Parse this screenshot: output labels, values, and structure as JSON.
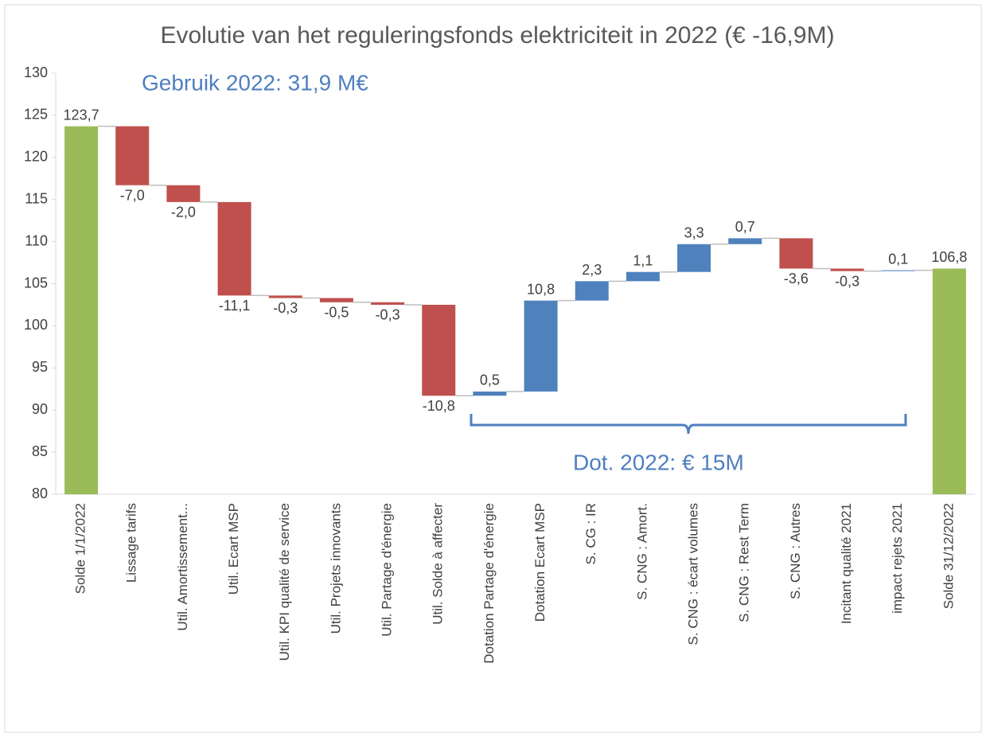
{
  "chart_data": {
    "type": "waterfall",
    "title": "Evolutie van het reguleringsfonds elektriciteit in 2022 (€ -16,9M)",
    "annotations": [
      "Gebruik 2022: 31,9 M€",
      "Dot. 2022: € 15M"
    ],
    "categories": [
      "Solde 1/1/2022",
      "Lissage tarifs",
      "Util. Amortissement...",
      "Util. Ecart MSP",
      "Util. KPI qualité de service",
      "Util. Projets innovants",
      "Util. Partage d'énergie",
      "Util. Solde à affecter",
      "Dotation Partage d'énergie",
      "Dotation Ecart MSP",
      "S. CG : IR",
      "S. CNG : Amort.",
      "S. CNG : écart volumes",
      "S. CNG : Rest Term",
      "S. CNG : Autres",
      "Incitant qualité 2021",
      "impact rejets 2021",
      "Solde 31/12/2022"
    ],
    "values": [
      123.7,
      -7.0,
      -2.0,
      -11.1,
      -0.3,
      -0.5,
      -0.3,
      -10.8,
      0.5,
      10.8,
      2.3,
      1.1,
      3.3,
      0.7,
      -3.6,
      -0.3,
      0.1,
      106.8
    ],
    "value_labels": [
      "123,7",
      "-7,0",
      "-2,0",
      "-11,1",
      "-0,3",
      "-0,5",
      "-0,3",
      "-10,8",
      "0,5",
      "10,8",
      "2,3",
      "1,1",
      "3,3",
      "0,7",
      "-3,6",
      "-0,3",
      "0,1",
      "106,8"
    ],
    "measure": [
      "total",
      "relative",
      "relative",
      "relative",
      "relative",
      "relative",
      "relative",
      "relative",
      "relative",
      "relative",
      "relative",
      "relative",
      "relative",
      "relative",
      "relative",
      "relative",
      "relative",
      "total"
    ],
    "colors": {
      "total": "#9bbb59",
      "increase": "#4f81bd",
      "decrease": "#c0504d"
    },
    "ylim": [
      80,
      130
    ],
    "yticks": [
      80,
      85,
      90,
      95,
      100,
      105,
      110,
      115,
      120,
      125,
      130
    ],
    "grid": false
  }
}
